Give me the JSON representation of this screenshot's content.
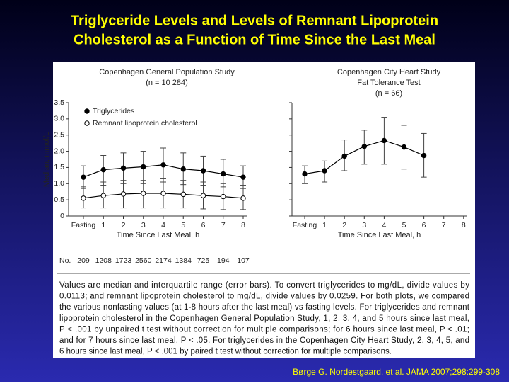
{
  "title": [
    "Triglyceride Levels and Levels of Remnant Lipoprotein",
    "Cholesterol as a Function of Time Since the Last Meal"
  ],
  "caption": [
    "Values are median and interquartile range (error bars). To convert triglycerides to mg/dL, divide values by",
    "0.0113; and remnant lipoprotein cholesterol to mg/dL, divide values by 0.0259. For both plots, we compared",
    "the various nonfasting values (at 1-8 hours after the last meal) vs fasting levels. For triglycerides and remnant",
    "lipoprotein cholesterol in the Copenhagen General Population Study, 1, 2, 3, 4, and 5 hours since last meal,",
    "P < .001 by unpaired t test without correction for multiple comparisons; for 6 hours since last meal, P < .01;",
    "and for 7 hours since last meal, P < .05. For triglycerides in the Copenhagen City Heart Study, 2, 3, 4, 5, and",
    "6 hours since last meal, P < .001 by paired t test without correction for multiple comparisons."
  ],
  "citation": "Børge G. Nordestgaard, et al. JAMA 2007;298:299-308",
  "chart_data": [
    {
      "type": "line",
      "title": "Copenhagen General Population Study",
      "subtitle": [
        "(n = 10 284)"
      ],
      "ylabel": "Median, mmol/L",
      "xlabel": "Time Since Last Meal, h",
      "categories": [
        "Fasting",
        "1",
        "2",
        "3",
        "4",
        "5",
        "6",
        "7",
        "8"
      ],
      "count_label": "No.",
      "counts": [
        209,
        1208,
        1723,
        2560,
        2174,
        1384,
        725,
        194,
        107
      ],
      "ylim": [
        0,
        3.5
      ],
      "yticks": [
        0,
        0.5,
        {
          "value": 1,
          "label": "1.0"
        },
        1.5,
        {
          "value": 2,
          "label": "2.0"
        },
        2.5,
        {
          "value": 3,
          "label": "3.0"
        },
        3.5
      ],
      "ytick_labels": true,
      "legend": "upper left",
      "series": [
        {
          "name": "Triglycerides",
          "color": "#000000",
          "marker_fill": "#000000",
          "values": [
            1.2,
            1.43,
            1.48,
            1.52,
            1.58,
            1.45,
            1.4,
            1.3,
            1.2
          ],
          "lower": [
            0.85,
            0.95,
            1.0,
            1.0,
            1.05,
            0.97,
            0.95,
            0.9,
            0.85
          ],
          "upper": [
            1.55,
            1.87,
            1.95,
            2.0,
            2.1,
            1.95,
            1.85,
            1.75,
            1.55
          ]
        },
        {
          "name": "Remnant lipoprotein cholesterol",
          "color": "#000000",
          "marker_fill": "#ffffff",
          "values": [
            0.55,
            0.63,
            0.68,
            0.7,
            0.7,
            0.67,
            0.63,
            0.6,
            0.55
          ],
          "lower": [
            0.25,
            0.25,
            0.25,
            0.25,
            0.25,
            0.25,
            0.22,
            0.2,
            0.2
          ],
          "upper": [
            0.9,
            1.05,
            1.1,
            1.1,
            1.15,
            1.1,
            1.05,
            1.0,
            0.95
          ]
        }
      ]
    },
    {
      "type": "line",
      "title": "Copenhagen City Heart Study",
      "subtitle": [
        "Fat Tolerance Test",
        "(n = 66)"
      ],
      "xlabel": "Time Since Last Meal, h",
      "categories": [
        "Fasting",
        "1",
        "2",
        "3",
        "4",
        "5",
        "6",
        "7",
        "8"
      ],
      "ylim": [
        0,
        3.5
      ],
      "yticks": [
        0,
        0.5,
        1,
        1.5,
        2,
        2.5,
        3,
        3.5
      ],
      "ytick_labels": false,
      "series": [
        {
          "name": "Triglycerides",
          "color": "#000000",
          "marker_fill": "#000000",
          "values": [
            1.3,
            1.4,
            1.85,
            2.15,
            2.33,
            2.13,
            1.87,
            null,
            null
          ],
          "lower": [
            1.0,
            1.05,
            1.4,
            1.6,
            1.6,
            1.45,
            1.2,
            null,
            null
          ],
          "upper": [
            1.55,
            1.7,
            2.35,
            2.65,
            3.05,
            2.8,
            2.55,
            null,
            null
          ]
        }
      ]
    }
  ]
}
